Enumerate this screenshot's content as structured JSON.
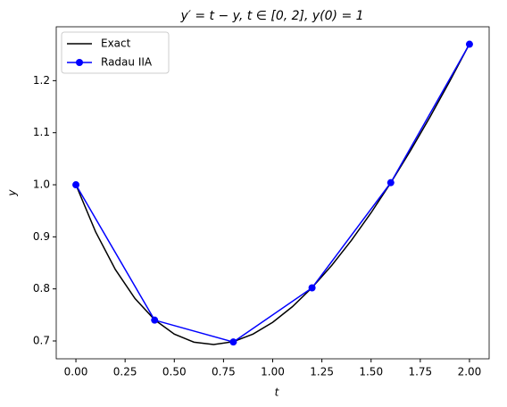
{
  "chart_data": {
    "type": "line",
    "title": "y′ = t − y, t ∈ [0, 2], y(0) = 1",
    "xlabel": "t",
    "ylabel": "y",
    "series": [
      {
        "name": "Exact",
        "color": "#000000",
        "marker": false,
        "x": [
          0,
          0.1,
          0.2,
          0.3,
          0.4,
          0.5,
          0.6,
          0.7,
          0.8,
          0.9,
          1.0,
          1.1,
          1.2,
          1.3,
          1.4,
          1.5,
          1.6,
          1.7,
          1.8,
          1.9,
          2.0
        ],
        "values": [
          1,
          0.909675,
          0.837462,
          0.781636,
          0.74064,
          0.713061,
          0.697623,
          0.693171,
          0.698658,
          0.713139,
          0.735759,
          0.765742,
          0.802388,
          0.845064,
          0.893194,
          0.94626,
          1.003793,
          1.065367,
          1.130598,
          1.199137,
          1.270671
        ]
      },
      {
        "name": "Radau IIA",
        "color": "#0000ff",
        "marker": true,
        "x": [
          0,
          0.4,
          0.8,
          1.2,
          1.6,
          2.0
        ],
        "values": [
          1.0,
          0.74,
          0.698,
          0.802,
          1.004,
          1.27
        ]
      }
    ],
    "xlim": [
      -0.1,
      2.1
    ],
    "ylim": [
      0.6657,
      1.3035
    ],
    "xticks": [
      {
        "value": 0,
        "label": "0.00"
      },
      {
        "value": 0.25,
        "label": "0.25"
      },
      {
        "value": 0.5,
        "label": "0.50"
      },
      {
        "value": 0.75,
        "label": "0.75"
      },
      {
        "value": 1,
        "label": "1.00"
      },
      {
        "value": 1.25,
        "label": "1.25"
      },
      {
        "value": 1.5,
        "label": "1.50"
      },
      {
        "value": 1.75,
        "label": "1.75"
      },
      {
        "value": 2,
        "label": "2.00"
      }
    ],
    "yticks": [
      0.7,
      0.8,
      0.9,
      {
        "value": 1,
        "label": "1.0"
      },
      1.1,
      1.2
    ],
    "grid": false,
    "legend": "upper-left"
  }
}
